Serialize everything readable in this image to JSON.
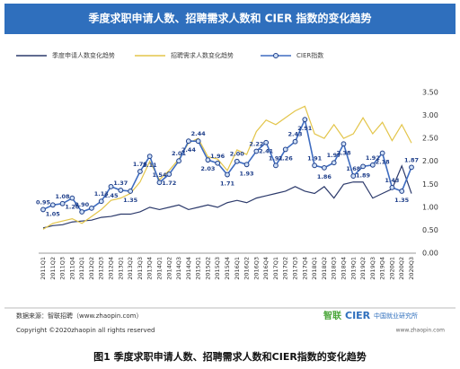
{
  "chart_data": {
    "type": "line",
    "title": "季度求职申请人数、招聘需求人数和 CIER 指数的变化趋势",
    "categories": [
      "2011Q1",
      "2011Q2",
      "2011Q3",
      "2011Q4",
      "2012Q1",
      "2012Q2",
      "2012Q3",
      "2012Q4",
      "2013Q1",
      "2013Q2",
      "2013Q3",
      "2013Q4",
      "2014Q1",
      "2014Q2",
      "2014Q3",
      "2014Q4",
      "2015Q1",
      "2015Q2",
      "2015Q3",
      "2015Q4",
      "2016Q1",
      "2016Q2",
      "2016Q3",
      "2016Q4",
      "2017Q1",
      "2017Q2",
      "2017Q3",
      "2017Q4",
      "2018Q1",
      "2018Q2",
      "2018Q3",
      "2018Q4",
      "2019Q1",
      "2019Q2",
      "2019Q3",
      "2019Q4",
      "2020Q1",
      "2020Q2",
      "2020Q3"
    ],
    "series": [
      {
        "name": "季度申请人数变化趋势",
        "color": "#2c3a6b",
        "values": [
          0.55,
          0.6,
          0.62,
          0.68,
          0.7,
          0.72,
          0.78,
          0.8,
          0.85,
          0.85,
          0.9,
          1.0,
          0.95,
          1.0,
          1.05,
          0.95,
          1.0,
          1.05,
          1.0,
          1.1,
          1.15,
          1.1,
          1.2,
          1.25,
          1.3,
          1.35,
          1.45,
          1.35,
          1.3,
          1.45,
          1.2,
          1.5,
          1.55,
          1.55,
          1.2,
          1.3,
          1.4,
          1.9,
          1.3
        ]
      },
      {
        "name": "招聘需求人数变化趋势",
        "color": "#e3c54a",
        "values": [
          0.52,
          0.65,
          0.7,
          0.75,
          0.65,
          0.8,
          0.95,
          1.15,
          1.2,
          1.3,
          1.55,
          2.0,
          1.6,
          1.8,
          2.05,
          2.4,
          2.5,
          2.1,
          2.05,
          1.8,
          2.25,
          2.15,
          2.65,
          2.9,
          2.8,
          2.95,
          3.1,
          3.2,
          2.6,
          2.5,
          2.8,
          2.5,
          2.6,
          2.95,
          2.6,
          2.85,
          2.45,
          2.8,
          2.4
        ]
      },
      {
        "name": "CIER指数",
        "color": "#3e6cc0",
        "markers": true,
        "values": [
          0.95,
          1.05,
          1.08,
          1.2,
          0.9,
          0.98,
          1.13,
          1.45,
          1.37,
          1.35,
          1.78,
          2.11,
          1.54,
          1.72,
          2.01,
          2.44,
          2.44,
          2.03,
          1.96,
          1.71,
          2.0,
          1.93,
          2.22,
          2.41,
          1.91,
          2.26,
          2.43,
          2.91,
          1.91,
          1.86,
          1.97,
          2.38,
          1.68,
          1.89,
          1.92,
          2.18,
          1.43,
          1.35,
          1.87
        ],
        "value_labels": [
          "0.95",
          "1.05",
          "1.08",
          "1.20",
          "0.90",
          null,
          "1.13",
          "1.45",
          "1.37",
          "1.35",
          "1.78",
          "2.11",
          "1.54",
          "1.72",
          "2.01",
          "2.44",
          "2.44",
          "2.03",
          "1.96",
          "1.71",
          "2.00",
          "1.93",
          "2.22",
          "2.41",
          "1.91",
          "2.26",
          "2.43",
          "2.91",
          "1.91",
          "1.86",
          "1.97",
          "2.38",
          "1.68",
          "1.89",
          "1.92",
          "2.18",
          "1.43",
          "1.35",
          "1.87"
        ]
      }
    ],
    "ylim": [
      0,
      3.5
    ],
    "yticks": [
      {
        "value": 0,
        "label": "0.00"
      },
      {
        "value": 0.5,
        "label": "0.50"
      },
      {
        "value": 1,
        "label": "1.00"
      },
      {
        "value": 1.5,
        "label": "1.50"
      },
      {
        "value": 2,
        "label": "2.00"
      },
      {
        "value": 2.5,
        "label": "2.50"
      },
      {
        "value": 3,
        "label": "3.00"
      },
      {
        "value": 3.5,
        "label": "3.50"
      }
    ],
    "grid": false,
    "legend": "top"
  },
  "footer": {
    "source": "数据来源：智联招聘（www.zhaopin.com）",
    "copyright": "Copyright ©2020zhaopin all rights reserved",
    "logo": "智联",
    "cier": "CIER",
    "cier_name": "中国就业研究所",
    "site": "www.zhaopin.com",
    "caption": "图1 季度求职申请人数、招聘需求人数和CIER指数的变化趋势"
  }
}
